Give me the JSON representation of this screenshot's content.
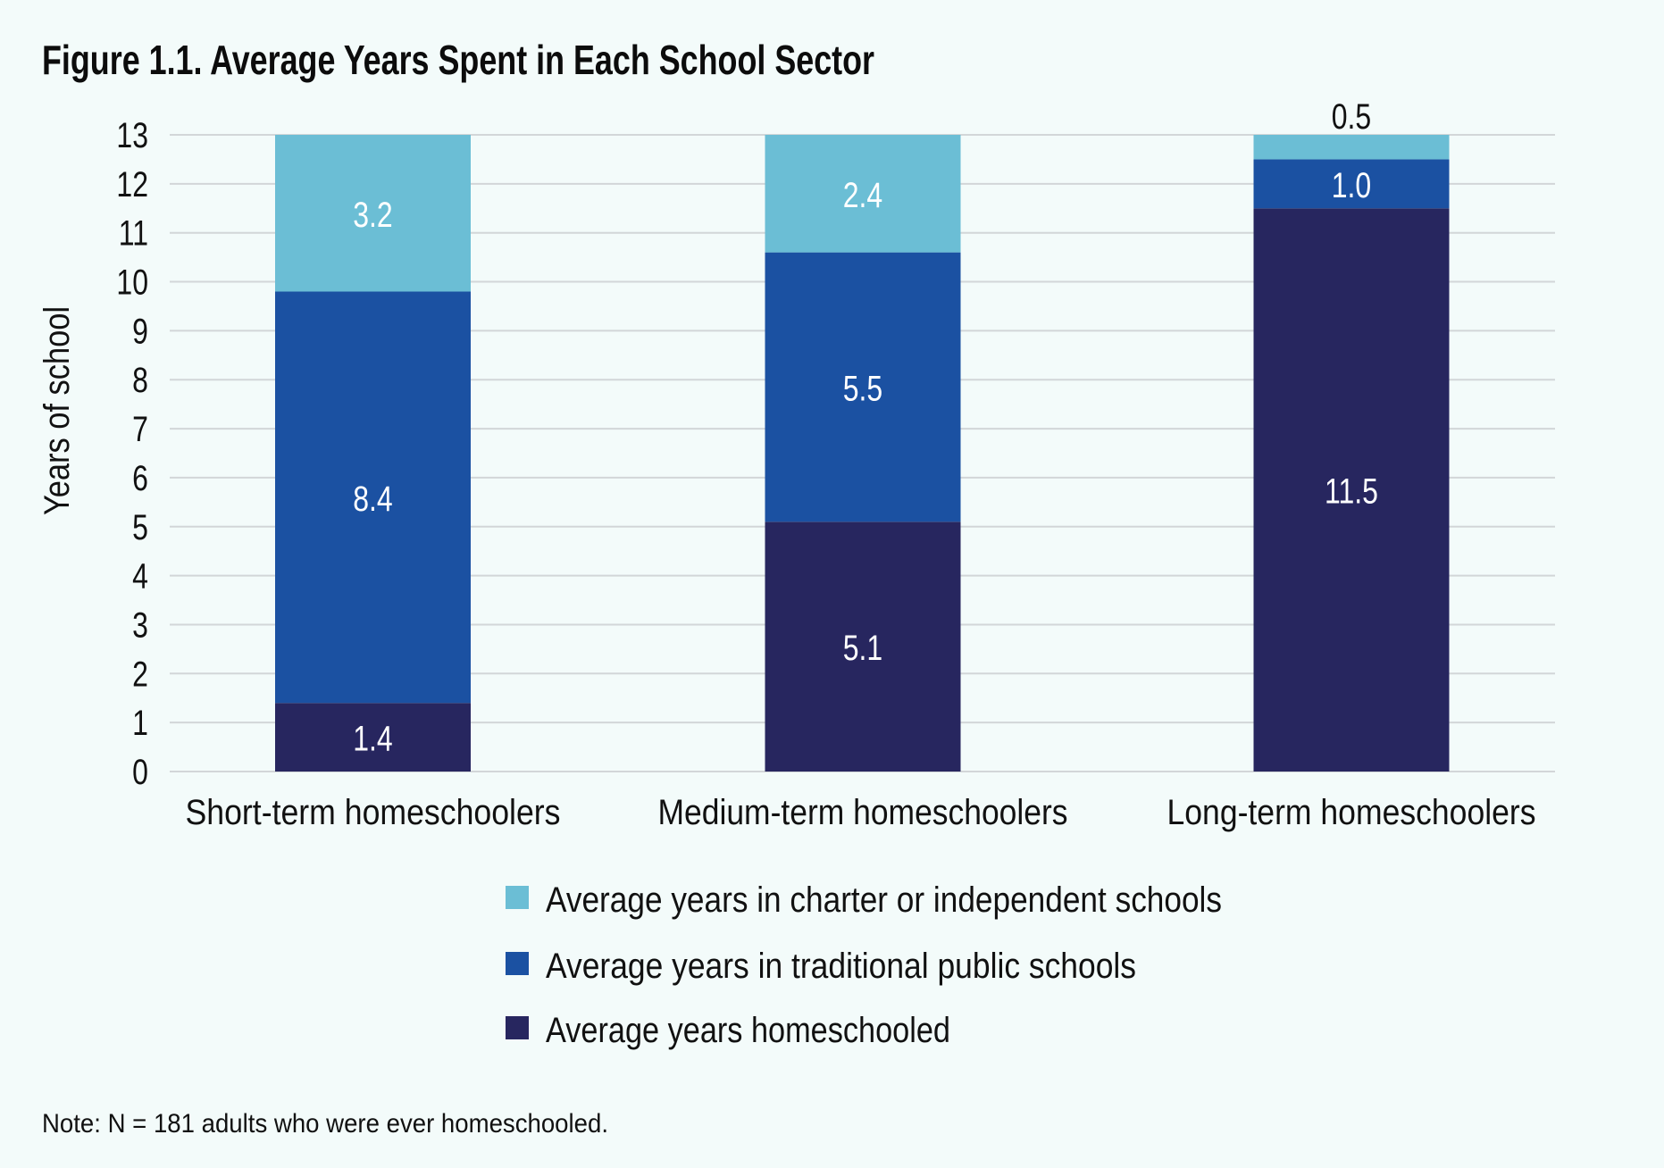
{
  "chart_data": {
    "type": "bar",
    "stacked": true,
    "title": "Figure 1.1. Average Years Spent in Each School Sector",
    "xlabel": "",
    "ylabel": "Years of school",
    "ylim": [
      0,
      13
    ],
    "yticks": [
      "0",
      "1",
      "2",
      "3",
      "4",
      "5",
      "6",
      "7",
      "8",
      "9",
      "10",
      "11",
      "12",
      "13"
    ],
    "grid": true,
    "categories": [
      "Short-term homeschoolers",
      "Medium-term homeschoolers",
      "Long-term homeschoolers"
    ],
    "series": [
      {
        "name": "Average years homeschooled",
        "color": "#27265F",
        "values": [
          1.4,
          5.1,
          11.5
        ],
        "labels": [
          "1.4",
          "5.1",
          "11.5"
        ]
      },
      {
        "name": "Average years in traditional public schools",
        "color": "#1B51A2",
        "values": [
          8.4,
          5.5,
          1.0
        ],
        "labels": [
          "8.4",
          "5.5",
          "1.0"
        ]
      },
      {
        "name": "Average years in charter or independent schools",
        "color": "#6BBED5",
        "values": [
          3.2,
          2.4,
          0.5
        ],
        "labels": [
          "3.2",
          "2.4",
          "0.5"
        ]
      }
    ],
    "legend": {
      "position": "bottom-center",
      "order": [
        "Average years in charter or independent schools",
        "Average years in traditional public schools",
        "Average years homeschooled"
      ]
    },
    "note": "Note: N = 181 adults who were ever homeschooled."
  }
}
